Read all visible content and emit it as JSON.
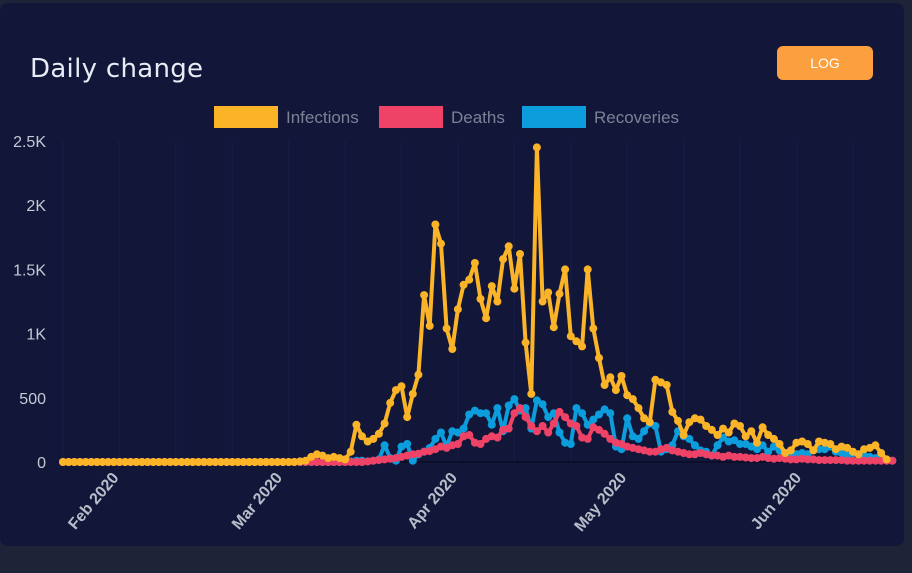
{
  "card": {
    "title": "Daily change"
  },
  "controls": {
    "log_button": "LOG"
  },
  "colors": {
    "background": "#12173a",
    "infections": "#fbb427",
    "deaths": "#ee4366",
    "recoveries": "#0c9ddd",
    "button": "#fb9f3f"
  },
  "chart_data": {
    "type": "line",
    "title": "Daily change",
    "x_unit": "days since 2020-01-22",
    "x_range": [
      0,
      148
    ],
    "ylim": [
      0,
      2500
    ],
    "y_ticks": [
      "0",
      "500",
      "1K",
      "1.5K",
      "2K",
      "2.5K"
    ],
    "y_tick_values": [
      0,
      500,
      1000,
      1500,
      2000,
      2500
    ],
    "x_ticks": [
      {
        "label": "Feb 2020",
        "day": 10
      },
      {
        "label": "Mar 2020",
        "day": 39
      },
      {
        "label": "Apr 2020",
        "day": 70
      },
      {
        "label": "May 2020",
        "day": 100
      },
      {
        "label": "Jun 2020",
        "day": 131
      }
    ],
    "legend": [
      "Infections",
      "Deaths",
      "Recoveries"
    ],
    "legend_position": "top-center",
    "series": [
      {
        "name": "Infections",
        "color": "#fbb427",
        "values": [
          0,
          0,
          0,
          0,
          0,
          0,
          0,
          0,
          0,
          0,
          0,
          0,
          0,
          0,
          0,
          0,
          0,
          0,
          0,
          0,
          0,
          0,
          0,
          0,
          0,
          0,
          0,
          0,
          0,
          0,
          0,
          0,
          0,
          0,
          0,
          0,
          0,
          0,
          0,
          0,
          0,
          0,
          5,
          10,
          40,
          60,
          50,
          30,
          40,
          30,
          20,
          80,
          290,
          200,
          160,
          180,
          220,
          300,
          460,
          560,
          590,
          350,
          530,
          680,
          1300,
          1060,
          1850,
          1700,
          1040,
          880,
          1190,
          1380,
          1420,
          1550,
          1270,
          1120,
          1370,
          1250,
          1580,
          1680,
          1350,
          1620,
          930,
          530,
          2450,
          1250,
          1320,
          1050,
          1310,
          1500,
          980,
          940,
          900,
          1500,
          1040,
          810,
          600,
          660,
          560,
          670,
          520,
          490,
          420,
          340,
          310,
          640,
          620,
          600,
          390,
          320,
          210,
          310,
          340,
          330,
          280,
          250,
          210,
          260,
          230,
          300,
          280,
          200,
          240,
          150,
          270,
          210,
          180,
          140,
          70,
          90,
          150,
          160,
          140,
          90,
          160,
          150,
          140,
          100,
          120,
          110,
          80,
          60,
          100,
          110,
          130,
          70,
          20
        ]
      },
      {
        "name": "Deaths",
        "color": "#ee4366",
        "values": [
          0,
          0,
          0,
          0,
          0,
          0,
          0,
          0,
          0,
          0,
          0,
          0,
          0,
          0,
          0,
          0,
          0,
          0,
          0,
          0,
          0,
          0,
          0,
          0,
          0,
          0,
          0,
          0,
          0,
          0,
          0,
          0,
          0,
          0,
          0,
          0,
          0,
          0,
          0,
          0,
          0,
          0,
          0,
          0,
          0,
          0,
          0,
          0,
          0,
          0,
          0,
          0,
          0,
          0,
          5,
          10,
          15,
          20,
          25,
          30,
          40,
          50,
          60,
          65,
          80,
          85,
          100,
          120,
          110,
          130,
          140,
          200,
          210,
          150,
          140,
          180,
          200,
          190,
          250,
          260,
          380,
          420,
          350,
          280,
          240,
          280,
          230,
          300,
          390,
          350,
          300,
          280,
          190,
          180,
          270,
          250,
          220,
          180,
          150,
          140,
          120,
          110,
          100,
          90,
          80,
          80,
          100,
          110,
          90,
          80,
          70,
          60,
          60,
          70,
          60,
          50,
          50,
          40,
          50,
          40,
          40,
          35,
          30,
          30,
          40,
          30,
          25,
          30,
          25,
          20,
          20,
          25,
          20,
          20,
          15,
          15,
          15,
          15,
          15,
          10,
          10,
          10,
          10,
          10,
          10,
          10,
          10,
          10
        ]
      },
      {
        "name": "Recoveries",
        "color": "#0c9ddd",
        "values": [
          0,
          0,
          0,
          0,
          0,
          0,
          0,
          0,
          0,
          0,
          0,
          0,
          0,
          0,
          0,
          0,
          0,
          0,
          0,
          0,
          0,
          0,
          0,
          0,
          0,
          0,
          0,
          0,
          0,
          0,
          0,
          0,
          0,
          0,
          0,
          0,
          0,
          0,
          0,
          0,
          0,
          0,
          0,
          0,
          0,
          0,
          0,
          0,
          0,
          0,
          0,
          5,
          10,
          10,
          5,
          10,
          20,
          130,
          30,
          10,
          120,
          140,
          10,
          60,
          80,
          110,
          180,
          230,
          120,
          240,
          230,
          260,
          370,
          400,
          380,
          380,
          290,
          420,
          240,
          440,
          490,
          400,
          420,
          260,
          480,
          450,
          350,
          380,
          230,
          150,
          140,
          420,
          380,
          290,
          330,
          370,
          410,
          380,
          120,
          100,
          340,
          200,
          180,
          240,
          300,
          280,
          80,
          100,
          130,
          240,
          200,
          180,
          130,
          90,
          80,
          50,
          130,
          190,
          160,
          170,
          140,
          140,
          120,
          100,
          130,
          80,
          120,
          90,
          60,
          50,
          60,
          70,
          60,
          90,
          100,
          100,
          120,
          80,
          70,
          50,
          70,
          60,
          50,
          40,
          30,
          20,
          15,
          10
        ]
      }
    ]
  }
}
